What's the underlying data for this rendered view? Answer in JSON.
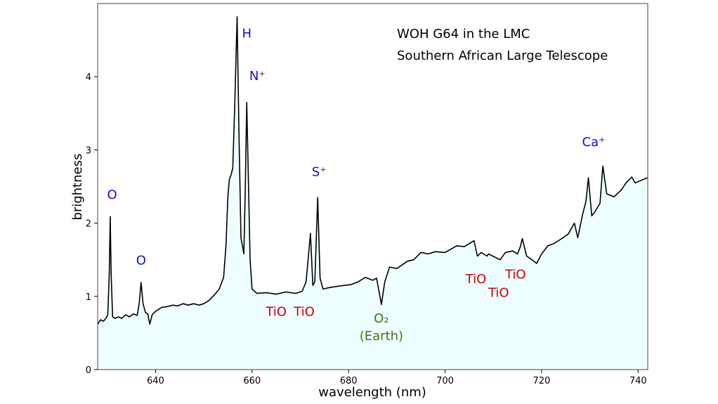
{
  "chart_data": {
    "type": "area",
    "title_lines": [
      "WOH G64 in the LMC",
      "Southern African Large Telescope"
    ],
    "xlabel": "wavelength (nm)",
    "ylabel": "brightness",
    "xlim": [
      628,
      742
    ],
    "ylim": [
      0,
      5
    ],
    "xticks": [
      640,
      660,
      680,
      700,
      720,
      740
    ],
    "yticks": [
      0,
      1,
      2,
      3,
      4
    ],
    "grid": false,
    "line_color": "#000000",
    "fill_color": "#eefeff",
    "series": [
      {
        "x": [
          628,
          628.6,
          629.2,
          629.7,
          630.1,
          630.4,
          630.6,
          630.8,
          631.1,
          631.6,
          632.3,
          633,
          633.8,
          634.6,
          635.4,
          636.2,
          636.6,
          637,
          637.4,
          637.9,
          638.4,
          638.8,
          639.3,
          640.1,
          641.3,
          642.4,
          643.6,
          644.6,
          645.7,
          646.8,
          647.9,
          649,
          650,
          651,
          652.2,
          653.2,
          654.1,
          654.6,
          655,
          655.3,
          655.6,
          656,
          656.4,
          656.9,
          657.3,
          657.7,
          658.3,
          658.6,
          658.9,
          659.3,
          659.6,
          660,
          661,
          663,
          665,
          667,
          669,
          670.4,
          671.2,
          672.1,
          672.6,
          673,
          673.6,
          674.1,
          674.7,
          676,
          678,
          680.5,
          682,
          683.5,
          685,
          685.8,
          686.8,
          687.5,
          688.5,
          690,
          692.2,
          693.5,
          695,
          696.5,
          698,
          700,
          702.4,
          704,
          706,
          706.7,
          707.5,
          708.7,
          709,
          711.4,
          712.5,
          714,
          715,
          715.6,
          716,
          716.9,
          718,
          719,
          720,
          721.3,
          722.5,
          724.2,
          725.5,
          726.8,
          727.5,
          728.5,
          729.2,
          729.7,
          730.4,
          731,
          732.1,
          732.7,
          733.5,
          735,
          736.5,
          737.5,
          738.7,
          739.4,
          741.9
        ],
        "y": [
          0.62,
          0.68,
          0.66,
          0.7,
          0.75,
          1.3,
          2.09,
          1.3,
          0.72,
          0.7,
          0.72,
          0.7,
          0.75,
          0.72,
          0.76,
          0.74,
          0.9,
          1.19,
          0.9,
          0.78,
          0.76,
          0.62,
          0.75,
          0.8,
          0.85,
          0.86,
          0.88,
          0.87,
          0.9,
          0.88,
          0.9,
          0.88,
          0.9,
          0.94,
          1.02,
          1.1,
          1.26,
          1.7,
          2.37,
          2.6,
          2.65,
          2.75,
          3.6,
          4.82,
          3.2,
          1.8,
          1.58,
          2.5,
          3.65,
          2.4,
          1.5,
          1.1,
          1.04,
          1.05,
          1.03,
          1.06,
          1.04,
          1.07,
          1.2,
          1.86,
          1.15,
          1.2,
          2.35,
          1.25,
          1.1,
          1.12,
          1.14,
          1.16,
          1.2,
          1.26,
          1.22,
          1.25,
          0.89,
          1.2,
          1.4,
          1.38,
          1.48,
          1.5,
          1.6,
          1.58,
          1.61,
          1.6,
          1.69,
          1.68,
          1.76,
          1.55,
          1.6,
          1.55,
          1.58,
          1.5,
          1.6,
          1.62,
          1.58,
          1.68,
          1.79,
          1.55,
          1.5,
          1.45,
          1.58,
          1.69,
          1.72,
          1.79,
          1.85,
          2.0,
          1.8,
          2.12,
          2.3,
          2.62,
          2.1,
          2.15,
          2.27,
          2.78,
          2.4,
          2.36,
          2.45,
          2.55,
          2.63,
          2.55,
          2.62
        ]
      }
    ],
    "annotations": [
      {
        "text": "O",
        "x": 631,
        "y": 2.4,
        "color": "#1010d0"
      },
      {
        "text": "O",
        "x": 637,
        "y": 1.5,
        "color": "#1010d0"
      },
      {
        "text": "H",
        "x": 658.9,
        "y": 4.6,
        "color": "#1010d0"
      },
      {
        "text": "N⁺",
        "x": 661.1,
        "y": 4.02,
        "color": "#1010d0"
      },
      {
        "text": "TiO",
        "x": 665,
        "y": 0.8,
        "color": "#d00000"
      },
      {
        "text": "TiO",
        "x": 670.8,
        "y": 0.8,
        "color": "#d00000"
      },
      {
        "text": "S⁺",
        "x": 673.9,
        "y": 2.71,
        "color": "#1010d0"
      },
      {
        "text": "O₂",
        "x": 686.8,
        "y": 0.71,
        "color": "#3a7a10"
      },
      {
        "text": "(Earth)",
        "x": 686.8,
        "y": 0.47,
        "color": "#3a7a10"
      },
      {
        "text": "TiO",
        "x": 706.4,
        "y": 1.25,
        "color": "#d00000"
      },
      {
        "text": "TiO",
        "x": 711.1,
        "y": 1.06,
        "color": "#d00000"
      },
      {
        "text": "TiO",
        "x": 714.6,
        "y": 1.31,
        "color": "#d00000"
      },
      {
        "text": "Ca⁺",
        "x": 730.8,
        "y": 3.12,
        "color": "#1010d0"
      }
    ]
  }
}
